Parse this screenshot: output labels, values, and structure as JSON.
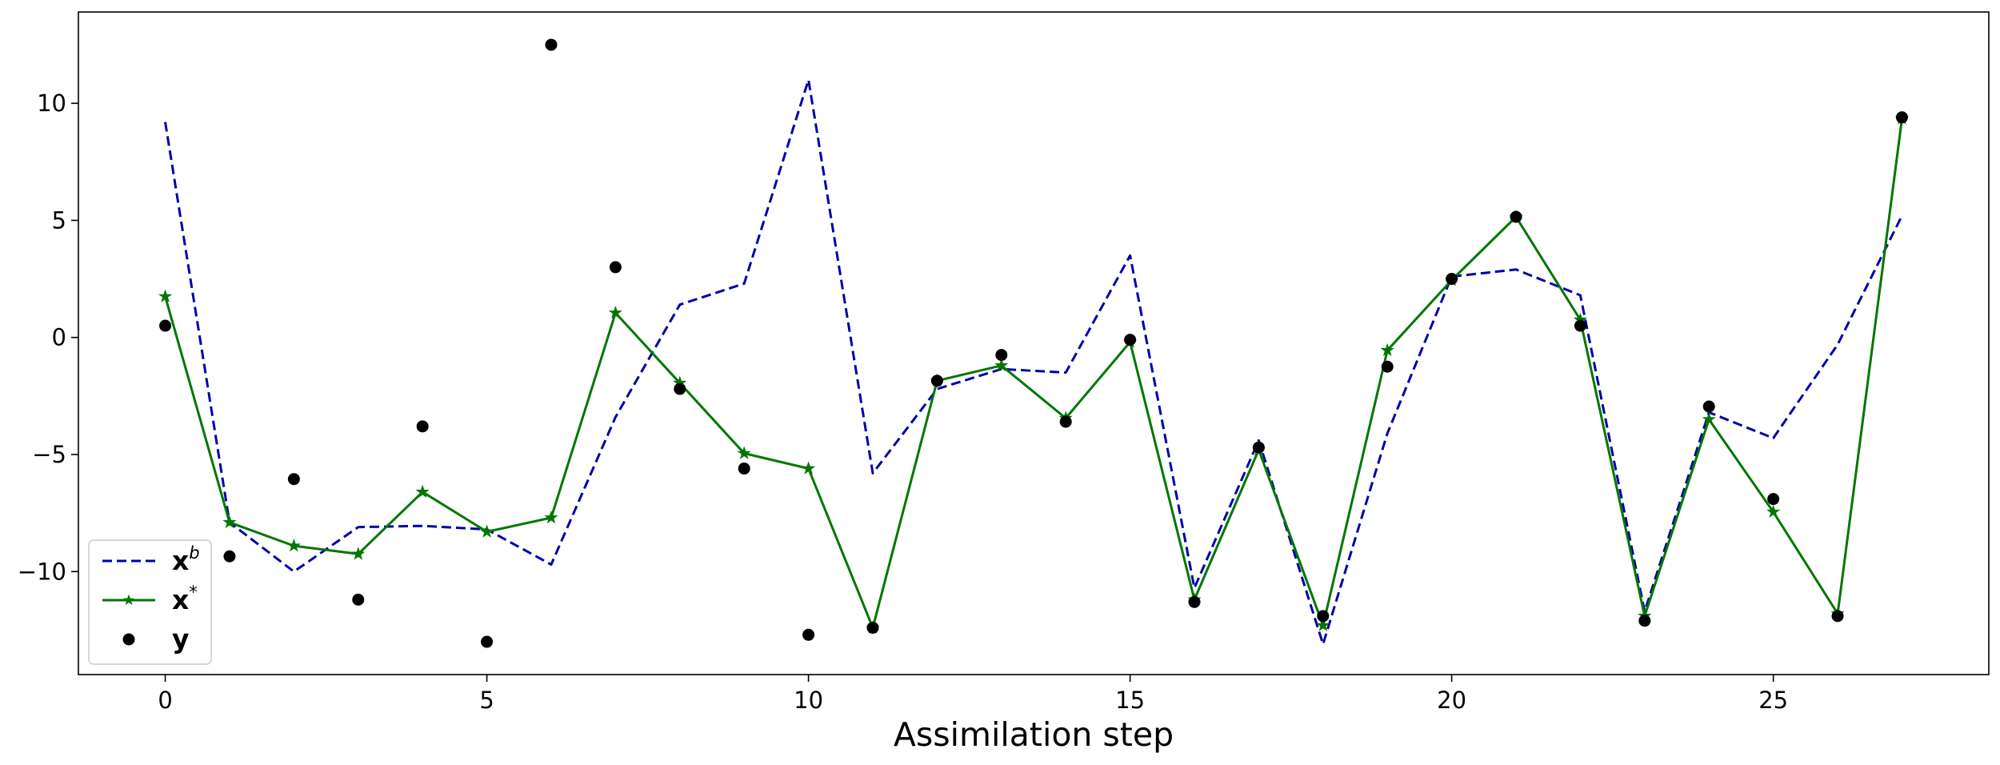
{
  "chart_data": {
    "type": "line",
    "title": "",
    "xlabel": "Assimilation step",
    "ylabel": "",
    "xlim": [
      -1.35,
      28.35
    ],
    "ylim": [
      -14.4,
      13.9
    ],
    "xticks": [
      0,
      5,
      10,
      15,
      20,
      25
    ],
    "yticks": [
      -10,
      -5,
      0,
      5,
      10
    ],
    "grid": false,
    "legend_position": "lower-left",
    "x": [
      0,
      1,
      2,
      3,
      4,
      5,
      6,
      7,
      8,
      9,
      10,
      11,
      12,
      13,
      14,
      15,
      16,
      17,
      18,
      19,
      20,
      21,
      22,
      23,
      24,
      25,
      26,
      27
    ],
    "series": [
      {
        "key": "xb",
        "name_base": "x",
        "name_sup": "b",
        "style": "dashed-line",
        "color": "#0000aa",
        "values": [
          9.2,
          -7.9,
          -10.0,
          -8.1,
          -8.05,
          -8.2,
          -9.7,
          -3.4,
          1.4,
          2.3,
          11.0,
          -5.8,
          -2.2,
          -1.35,
          -1.5,
          3.5,
          -10.7,
          -4.4,
          -13.1,
          -4.1,
          2.6,
          2.9,
          1.8,
          -11.7,
          -3.2,
          -4.3,
          -0.3,
          5.2
        ]
      },
      {
        "key": "xstar",
        "name_base": "x",
        "name_sup": "*",
        "style": "line-star",
        "color": "#007700",
        "values": [
          1.75,
          -7.9,
          -8.9,
          -9.25,
          -6.6,
          -8.3,
          -7.7,
          1.05,
          -1.95,
          -4.95,
          -5.6,
          -12.4,
          -1.85,
          -1.2,
          -3.45,
          -0.2,
          -11.2,
          -4.8,
          -12.3,
          -0.55,
          2.45,
          5.15,
          0.75,
          -11.9,
          -3.5,
          -7.45,
          -11.8,
          9.35
        ]
      },
      {
        "key": "y",
        "name_base": "y",
        "name_sup": "",
        "style": "markers",
        "color": "#000000",
        "values": [
          0.5,
          -9.35,
          -6.05,
          -11.2,
          -3.8,
          -13.0,
          12.5,
          3.0,
          -2.2,
          -5.6,
          -12.7,
          -12.4,
          -1.85,
          -0.75,
          -3.6,
          -0.1,
          -11.3,
          -4.7,
          -11.9,
          -1.25,
          2.5,
          5.15,
          0.5,
          -12.1,
          -2.95,
          -6.9,
          -11.9,
          9.4
        ]
      }
    ]
  }
}
